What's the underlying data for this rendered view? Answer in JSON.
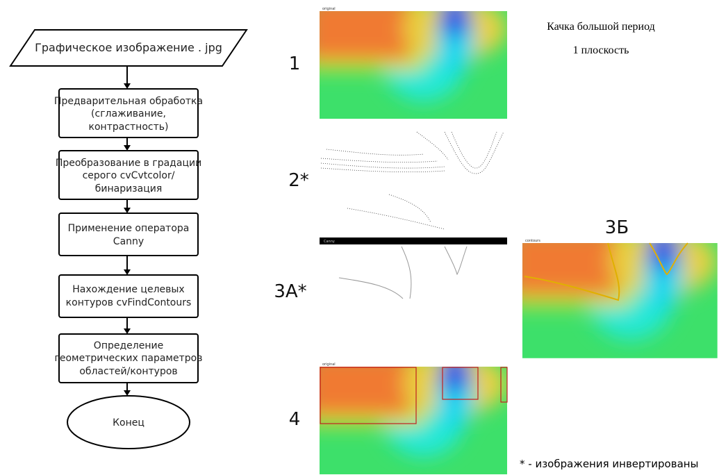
{
  "flowchart": {
    "nodes": [
      {
        "lines": [
          "Графическое изображение . jpg"
        ]
      },
      {
        "lines": [
          "Предварительная обработка",
          "(сглаживание,",
          "контрастность)"
        ]
      },
      {
        "lines": [
          "Преобразование в градации",
          "серого cvCvtcolor/",
          "бинаризация"
        ]
      },
      {
        "lines": [
          "Применение оператора",
          "Canny"
        ]
      },
      {
        "lines": [
          "Нахождение целевых",
          "контуров cvFindContours"
        ]
      },
      {
        "lines": [
          "Определение",
          "геометрических параметров",
          "областей/контуров"
        ]
      },
      {
        "lines": [
          "Конец"
        ]
      }
    ]
  },
  "panels": {
    "labels": [
      "1",
      "2*",
      "3А*",
      "3Б",
      "4"
    ],
    "window_titles": [
      "original",
      "Canny",
      "contours",
      "original"
    ]
  },
  "header": {
    "title": "Качка большой период",
    "subtitle": "1 плоскость"
  },
  "footnote": "* - изображения инвертированы"
}
